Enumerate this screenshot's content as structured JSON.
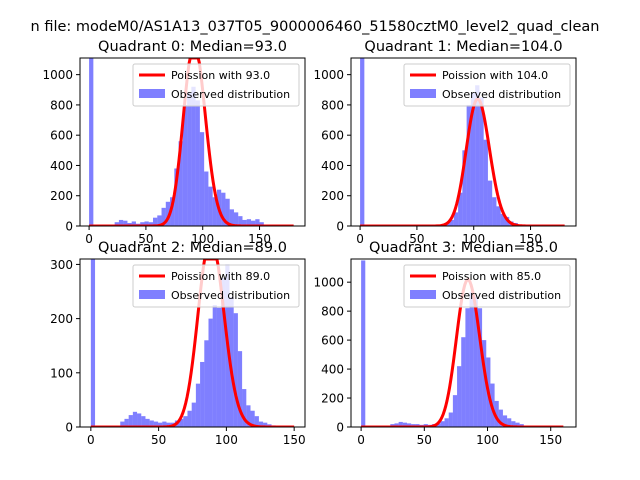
{
  "figure": {
    "suptitle": "n file: modeM0/AS1A13_037T05_9000006460_51580cztM0_level2_quad_clean"
  },
  "colors": {
    "hist": "#0000ff",
    "poisson": "#ff0000",
    "axis": "#000000"
  },
  "chart_data": [
    {
      "type": "bar",
      "title": "Quadrant 0: Median=93.0",
      "xlim": [
        -8,
        190
      ],
      "ylim": [
        0,
        1110
      ],
      "xticks": [
        0,
        50,
        100,
        150
      ],
      "yticks": [
        0,
        200,
        400,
        600,
        800,
        1000
      ],
      "legend": {
        "position": "top-right",
        "entries": [
          "Poission with 93.0",
          "Observed distribution"
        ]
      },
      "series": [
        {
          "name": "Poission with 93.0",
          "kind": "line",
          "mean": 93,
          "x_range": [
            0,
            180
          ]
        },
        {
          "name": "Observed distribution",
          "kind": "histogram",
          "bin_width": 3.75,
          "x": [
            0,
            3.75,
            7.5,
            11.25,
            15,
            18.75,
            22.5,
            26.25,
            30,
            33.75,
            37.5,
            41.25,
            45,
            48.75,
            52.5,
            56.25,
            60,
            63.75,
            67.5,
            71.25,
            75,
            78.75,
            82.5,
            86.25,
            90,
            93.75,
            97.5,
            101.25,
            105,
            108.75,
            112.5,
            116.25,
            120,
            123.75,
            127.5,
            131.25,
            135,
            138.75,
            142.5,
            146.25,
            150,
            153.75,
            157.5,
            161.25,
            165
          ],
          "values": [
            1200,
            0,
            0,
            0,
            0,
            0,
            25,
            40,
            35,
            20,
            30,
            15,
            25,
            30,
            25,
            55,
            70,
            120,
            160,
            190,
            380,
            560,
            800,
            880,
            920,
            830,
            620,
            360,
            260,
            190,
            240,
            220,
            180,
            110,
            90,
            65,
            40,
            45,
            35,
            45,
            25,
            0,
            0,
            0,
            0
          ]
        }
      ]
    },
    {
      "type": "bar",
      "title": "Quadrant 1: Median=104.0",
      "xlim": [
        -8,
        190
      ],
      "ylim": [
        0,
        1110
      ],
      "xticks": [
        0,
        50,
        100,
        150
      ],
      "yticks": [
        0,
        200,
        400,
        600,
        800,
        1000
      ],
      "legend": {
        "position": "top-right",
        "entries": [
          "Poission with 104.0",
          "Observed distribution"
        ]
      },
      "series": [
        {
          "name": "Poission with 104.0",
          "kind": "line",
          "mean": 104,
          "x_range": [
            0,
            180
          ]
        },
        {
          "name": "Observed distribution",
          "kind": "histogram",
          "bin_width": 3.75,
          "x": [
            0,
            3.75,
            7.5,
            11.25,
            15,
            18.75,
            22.5,
            26.25,
            30,
            33.75,
            37.5,
            41.25,
            45,
            48.75,
            52.5,
            56.25,
            60,
            63.75,
            67.5,
            71.25,
            75,
            78.75,
            82.5,
            86.25,
            90,
            93.75,
            97.5,
            101.25,
            105,
            108.75,
            112.5,
            116.25,
            120,
            123.75,
            127.5,
            131.25,
            135,
            138.75,
            142.5,
            146.25,
            150
          ],
          "values": [
            1200,
            0,
            0,
            0,
            0,
            0,
            0,
            0,
            0,
            0,
            0,
            0,
            0,
            0,
            0,
            0,
            0,
            0,
            0,
            0,
            20,
            40,
            90,
            220,
            500,
            800,
            880,
            930,
            850,
            570,
            300,
            190,
            130,
            80,
            60,
            30,
            20,
            10,
            0,
            0,
            0
          ]
        }
      ]
    },
    {
      "type": "bar",
      "title": "Quadrant 2: Median=89.0",
      "xlim": [
        -8,
        158
      ],
      "ylim": [
        0,
        310
      ],
      "xticks": [
        0,
        50,
        100,
        150
      ],
      "yticks": [
        0,
        100,
        200,
        300
      ],
      "legend": {
        "position": "top-right",
        "entries": [
          "Poission with 89.0",
          "Observed distribution"
        ]
      },
      "series": [
        {
          "name": "Poission with 89.0",
          "kind": "line",
          "mean": 89,
          "x_range": [
            0,
            150
          ]
        },
        {
          "name": "Observed distribution",
          "kind": "histogram",
          "bin_width": 3.1,
          "x": [
            0,
            3.1,
            6.2,
            9.3,
            12.4,
            15.5,
            18.6,
            21.7,
            24.8,
            27.9,
            31,
            34.1,
            37.2,
            40.3,
            43.4,
            46.5,
            49.6,
            52.7,
            55.8,
            58.9,
            62,
            65.1,
            68.2,
            71.3,
            74.4,
            77.5,
            80.6,
            83.7,
            86.8,
            89.9,
            93,
            96.1,
            99.2,
            102.3,
            105.4,
            108.5,
            111.6,
            114.7,
            117.8,
            120.9,
            124,
            127.1,
            130.2,
            133.3,
            136.4,
            139.5,
            142.6
          ],
          "values": [
            310,
            0,
            0,
            0,
            0,
            0,
            2,
            10,
            15,
            22,
            28,
            25,
            20,
            15,
            12,
            10,
            8,
            10,
            8,
            8,
            12,
            15,
            20,
            30,
            45,
            80,
            120,
            160,
            200,
            225,
            220,
            275,
            300,
            240,
            210,
            140,
            70,
            40,
            30,
            20,
            10,
            8,
            5,
            3,
            0,
            0,
            0
          ]
        }
      ]
    },
    {
      "type": "bar",
      "title": "Quadrant 3: Median=85.0",
      "xlim": [
        -8,
        170
      ],
      "ylim": [
        0,
        1160
      ],
      "xticks": [
        0,
        50,
        100,
        150
      ],
      "yticks": [
        0,
        200,
        400,
        600,
        800,
        1000
      ],
      "legend": {
        "position": "top-right",
        "entries": [
          "Poission with 85.0",
          "Observed distribution"
        ]
      },
      "series": [
        {
          "name": "Poission with 85.0",
          "kind": "line",
          "mean": 85,
          "x_range": [
            0,
            160
          ]
        },
        {
          "name": "Observed distribution",
          "kind": "histogram",
          "bin_width": 3.3,
          "x": [
            0,
            3.3,
            6.6,
            9.9,
            13.2,
            16.5,
            19.8,
            23.1,
            26.4,
            29.7,
            33,
            36.3,
            39.6,
            42.9,
            46.2,
            49.5,
            52.8,
            56.1,
            59.4,
            62.7,
            66,
            69.3,
            72.6,
            75.9,
            79.2,
            82.5,
            85.8,
            89.1,
            92.4,
            95.7,
            99,
            102.3,
            105.6,
            108.9,
            112.2,
            115.5,
            118.8,
            122.1,
            125.4,
            128.7,
            132,
            135.3,
            138.6,
            141.9,
            145.2
          ],
          "values": [
            1150,
            0,
            0,
            0,
            0,
            0,
            0,
            20,
            25,
            35,
            30,
            25,
            20,
            20,
            15,
            20,
            15,
            20,
            25,
            40,
            60,
            100,
            220,
            420,
            620,
            820,
            930,
            900,
            820,
            600,
            480,
            300,
            180,
            120,
            80,
            60,
            40,
            30,
            20,
            10,
            5,
            0,
            0,
            0,
            0
          ]
        }
      ]
    }
  ]
}
